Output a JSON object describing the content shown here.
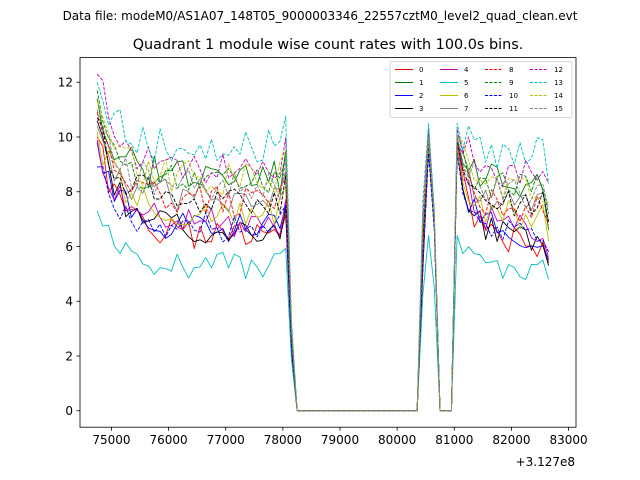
{
  "chart_data": {
    "type": "line",
    "suptitle": "Data file: modeM0/AS1A07_148T05_9000003346_22557cztM0_level2_quad_clean.evt",
    "title": "Quadrant 1 module wise count rates with 100.0s bins.",
    "xlabel": "",
    "ylabel": "",
    "offset_text": "+3.127e8",
    "xlim": [
      74450,
      83130
    ],
    "ylim": [
      -0.6,
      12.9
    ],
    "x_ticks": [
      75000,
      76000,
      77000,
      78000,
      79000,
      80000,
      81000,
      82000,
      83000
    ],
    "x_tick_labels": [
      "75000",
      "76000",
      "77000",
      "78000",
      "79000",
      "80000",
      "81000",
      "82000",
      "83000"
    ],
    "y_ticks": [
      0,
      2,
      4,
      6,
      8,
      10,
      12
    ],
    "y_tick_labels": [
      "0",
      "2",
      "4",
      "6",
      "8",
      "10",
      "12"
    ],
    "legend_position": "top-right",
    "segments": [
      {
        "start": 74750,
        "end": 78050,
        "kind": "active"
      },
      {
        "start": 78150,
        "end": 78250,
        "kind": "ramp_down"
      },
      {
        "start": 78250,
        "end": 80350,
        "kind": "zero"
      },
      {
        "start": 80350,
        "end": 80450,
        "kind": "ramp_up"
      },
      {
        "start": 80450,
        "end": 80650,
        "kind": "active"
      },
      {
        "start": 80750,
        "end": 80950,
        "kind": "zero"
      },
      {
        "start": 81050,
        "end": 82650,
        "kind": "active"
      }
    ],
    "series": [
      {
        "name": "0",
        "color": "#ff0000",
        "dash": "solid",
        "level": 6.4,
        "start_value": 10.0,
        "peak": 9.8,
        "end_value": 5.4
      },
      {
        "name": "1",
        "color": "#008000",
        "dash": "solid",
        "level": 8.5,
        "start_value": 11.4,
        "peak": 10.0,
        "end_value": 6.6
      },
      {
        "name": "2",
        "color": "#0000ff",
        "dash": "solid",
        "level": 6.7,
        "start_value": 9.8,
        "peak": 9.6,
        "end_value": 5.5
      },
      {
        "name": "3",
        "color": "#000000",
        "dash": "solid",
        "level": 6.6,
        "start_value": 10.6,
        "peak": 9.7,
        "end_value": 5.3
      },
      {
        "name": "4",
        "color": "#bf00bf",
        "dash": "solid",
        "level": 6.9,
        "start_value": 9.9,
        "peak": 9.8,
        "end_value": 5.6
      },
      {
        "name": "5",
        "color": "#00bfbf",
        "dash": "solid",
        "level": 5.3,
        "start_value": 7.3,
        "peak": 6.4,
        "end_value": 4.8
      },
      {
        "name": "6",
        "color": "#bfbf00",
        "dash": "solid",
        "level": 7.3,
        "start_value": 10.2,
        "peak": 9.6,
        "end_value": 6.2
      },
      {
        "name": "7",
        "color": "#808080",
        "dash": "solid",
        "level": 7.8,
        "start_value": 10.4,
        "peak": 9.8,
        "end_value": 6.9
      },
      {
        "name": "8",
        "color": "#ff0000",
        "dash": "dashed",
        "level": 7.6,
        "start_value": 10.9,
        "peak": 9.9,
        "end_value": 6.8
      },
      {
        "name": "9",
        "color": "#008000",
        "dash": "dashed",
        "level": 8.3,
        "start_value": 11.7,
        "peak": 10.1,
        "end_value": 7.2
      },
      {
        "name": "10",
        "color": "#0000ff",
        "dash": "dashed",
        "level": 6.7,
        "start_value": 8.9,
        "peak": 9.4,
        "end_value": 5.8
      },
      {
        "name": "11",
        "color": "#000000",
        "dash": "dashed",
        "level": 7.7,
        "start_value": 10.7,
        "peak": 9.9,
        "end_value": 6.9
      },
      {
        "name": "12",
        "color": "#bf00bf",
        "dash": "dashed",
        "level": 8.9,
        "start_value": 12.3,
        "peak": 10.3,
        "end_value": 8.3
      },
      {
        "name": "13",
        "color": "#00bfbf",
        "dash": "dashed",
        "level": 9.6,
        "start_value": 12.0,
        "peak": 10.5,
        "end_value": 8.3
      },
      {
        "name": "14",
        "color": "#bfbf00",
        "dash": "dashed",
        "level": 8.5,
        "start_value": 11.3,
        "peak": 10.0,
        "end_value": 7.6
      },
      {
        "name": "15",
        "color": "#808080",
        "dash": "dashed",
        "level": 8.2,
        "start_value": 11.0,
        "peak": 10.0,
        "end_value": 7.4
      }
    ]
  }
}
